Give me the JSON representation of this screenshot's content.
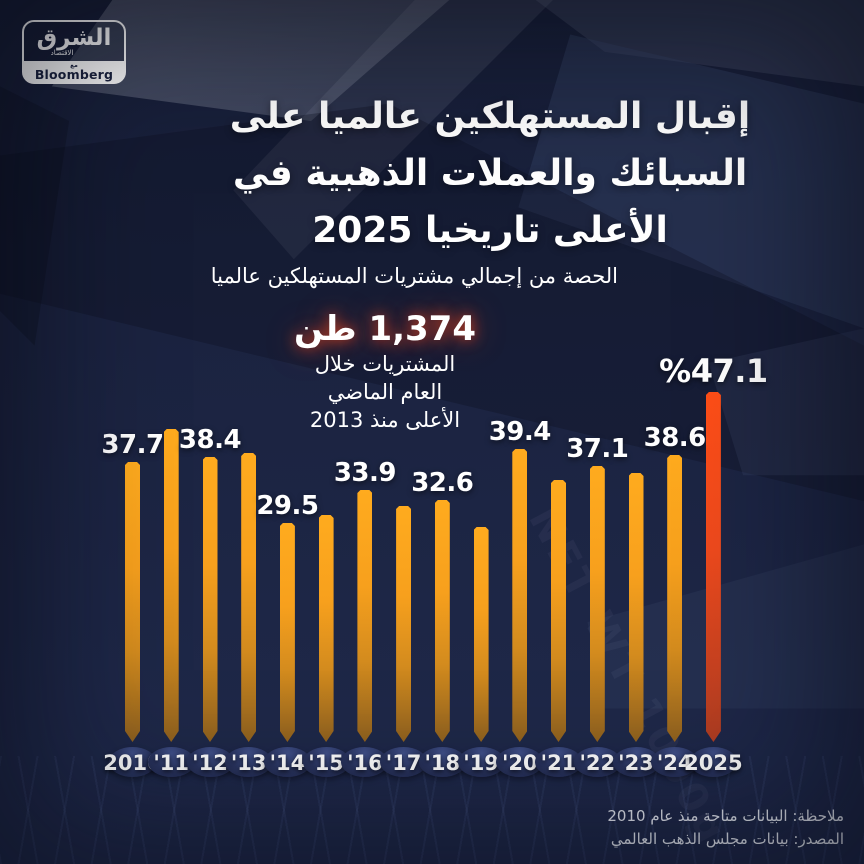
{
  "brand": {
    "logo_arabic": "الشرق",
    "logo_sub": "الاقتصاد",
    "logo_with": "مع",
    "logo_bloomberg": "Bloomberg"
  },
  "header": {
    "title_lines": [
      "إقبال المستهلكين عالميا على",
      "السبائك والعملات الذهبية في",
      "2025 الأعلى تاريخيا"
    ],
    "legend_label": "الحصة من إجمالي مشتريات المستهلكين عالميا",
    "legend_color": "#F49E1D"
  },
  "callout": {
    "value": "1,374 طن",
    "value_color": "#FF4A1C",
    "lines": [
      "المشتريات خلال",
      "العام الماضي",
      "الأعلى منذ 2013"
    ]
  },
  "chart_data": {
    "type": "bar",
    "categories": [
      "2010",
      "'11",
      "'12",
      "'13",
      "'14",
      "'15",
      "'16",
      "'17",
      "'18",
      "'19",
      "'20",
      "'21",
      "'22",
      "'23",
      "'24",
      "2025"
    ],
    "values": [
      37.7,
      42.1,
      38.4,
      38.9,
      29.5,
      30.6,
      33.9,
      31.8,
      32.6,
      28.9,
      39.4,
      35.3,
      37.1,
      36.2,
      38.6,
      47.1
    ],
    "value_labels_shown": [
      "37.7",
      "",
      "38.4",
      "",
      "29.5",
      "",
      "33.9",
      "",
      "32.6",
      "",
      "39.4",
      "",
      "37.1",
      "",
      "38.6",
      "%47.1"
    ],
    "unlabeled_values_estimated": true,
    "highlight_index": 15,
    "bar_color": "#F7A01D",
    "highlight_color": "#FF4E17",
    "title": "الحصة من إجمالي مشتريات المستهلكين عالميا",
    "xlabel": "",
    "ylabel": "",
    "ylim": [
      0,
      50
    ],
    "grid": false,
    "legend_position": "top"
  },
  "background": {
    "embossed_text": "NET WT 1000g"
  },
  "footer": {
    "note": "ملاحظة: البيانات متاحة منذ عام 2010",
    "source": "المصدر: بيانات مجلس الذهب العالمي"
  }
}
